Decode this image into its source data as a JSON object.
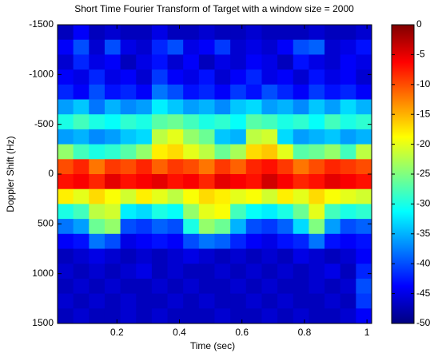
{
  "chart_data": {
    "type": "heatmap",
    "title": "Short Time Fourier Transform of Target with a window size = 2000",
    "x_label": "Time (sec)",
    "y_label": "Doppler Shift (Hz)",
    "xlim": [
      0.01,
      1.015
    ],
    "xticks": [
      0.2,
      0.4,
      0.6,
      0.8,
      1
    ],
    "ylim": [
      -1500,
      1500
    ],
    "y_inverted": true,
    "yticks": [
      -1500,
      -1000,
      -500,
      0,
      500,
      1000,
      1500
    ],
    "clim": [
      -50,
      0
    ],
    "cticks": [
      0,
      -5,
      -10,
      -15,
      -20,
      -25,
      -30,
      -35,
      -40,
      -45,
      -50
    ],
    "colormap": "jet",
    "z": [
      [
        -47,
        -44,
        -47,
        -46,
        -47,
        -47,
        -45,
        -47,
        -47,
        -46,
        -47,
        -47,
        -46,
        -47,
        -47,
        -47,
        -46,
        -47,
        -47,
        -46
      ],
      [
        -44,
        -40,
        -46,
        -40,
        -45,
        -46,
        -42,
        -40,
        -45,
        -44,
        -41,
        -46,
        -45,
        -46,
        -44,
        -40,
        -39,
        -46,
        -45,
        -43
      ],
      [
        -46,
        -42,
        -45,
        -44,
        -47,
        -45,
        -43,
        -46,
        -44,
        -47,
        -45,
        -46,
        -44,
        -45,
        -47,
        -43,
        -45,
        -46,
        -44,
        -45
      ],
      [
        -44,
        -45,
        -42,
        -45,
        -44,
        -46,
        -41,
        -44,
        -45,
        -43,
        -46,
        -44,
        -42,
        -45,
        -44,
        -46,
        -43,
        -45,
        -44,
        -46
      ],
      [
        -42,
        -44,
        -40,
        -43,
        -42,
        -44,
        -38,
        -40,
        -43,
        -42,
        -44,
        -41,
        -43,
        -40,
        -42,
        -44,
        -41,
        -43,
        -42,
        -44
      ],
      [
        -36,
        -34,
        -38,
        -35,
        -37,
        -36,
        -32,
        -34,
        -36,
        -35,
        -37,
        -34,
        -33,
        -36,
        -35,
        -37,
        -34,
        -36,
        -33,
        -35
      ],
      [
        -30,
        -28,
        -30,
        -31,
        -29,
        -30,
        -27,
        -26,
        -28,
        -30,
        -29,
        -31,
        -27,
        -28,
        -30,
        -29,
        -31,
        -28,
        -30,
        -29
      ],
      [
        -36,
        -35,
        -37,
        -36,
        -34,
        -33,
        -22,
        -20,
        -24,
        -26,
        -34,
        -35,
        -22,
        -21,
        -33,
        -36,
        -35,
        -34,
        -36,
        -35
      ],
      [
        -24,
        -28,
        -30,
        -29,
        -27,
        -24,
        -18,
        -17,
        -20,
        -22,
        -26,
        -23,
        -17,
        -16,
        -20,
        -27,
        -26,
        -24,
        -28,
        -22
      ],
      [
        -10,
        -8,
        -12,
        -9,
        -10,
        -8,
        -11,
        -9,
        -10,
        -12,
        -9,
        -11,
        -8,
        -7,
        -9,
        -12,
        -10,
        -8,
        -9,
        -10
      ],
      [
        -7,
        -6,
        -8,
        -5,
        -7,
        -6,
        -5,
        -7,
        -6,
        -8,
        -5,
        -6,
        -7,
        -4,
        -6,
        -8,
        -7,
        -5,
        -6,
        -7
      ],
      [
        -18,
        -20,
        -17,
        -19,
        -21,
        -18,
        -20,
        -22,
        -19,
        -17,
        -18,
        -20,
        -19,
        -21,
        -18,
        -20,
        -17,
        -19,
        -20,
        -21
      ],
      [
        -30,
        -28,
        -22,
        -21,
        -32,
        -33,
        -30,
        -31,
        -24,
        -20,
        -19,
        -28,
        -31,
        -32,
        -30,
        -26,
        -20,
        -28,
        -30,
        -29
      ],
      [
        -38,
        -36,
        -26,
        -24,
        -40,
        -41,
        -39,
        -40,
        -30,
        -24,
        -26,
        -35,
        -40,
        -41,
        -39,
        -33,
        -25,
        -36,
        -40,
        -39
      ],
      [
        -44,
        -43,
        -38,
        -40,
        -45,
        -44,
        -43,
        -44,
        -40,
        -38,
        -39,
        -42,
        -44,
        -45,
        -43,
        -42,
        -38,
        -43,
        -44,
        -43
      ],
      [
        -47,
        -46,
        -45,
        -46,
        -47,
        -46,
        -47,
        -46,
        -45,
        -46,
        -47,
        -46,
        -47,
        -46,
        -47,
        -45,
        -46,
        -47,
        -46,
        -44
      ],
      [
        -46,
        -47,
        -46,
        -47,
        -46,
        -45,
        -47,
        -46,
        -47,
        -47,
        -46,
        -47,
        -46,
        -47,
        -46,
        -47,
        -46,
        -45,
        -47,
        -42
      ],
      [
        -47,
        -46,
        -47,
        -46,
        -47,
        -47,
        -46,
        -47,
        -46,
        -47,
        -47,
        -46,
        -47,
        -46,
        -47,
        -47,
        -46,
        -47,
        -46,
        -40
      ],
      [
        -46,
        -47,
        -46,
        -47,
        -46,
        -47,
        -47,
        -46,
        -47,
        -46,
        -47,
        -47,
        -46,
        -47,
        -46,
        -47,
        -47,
        -46,
        -47,
        -41
      ],
      [
        -47,
        -46,
        -47,
        -47,
        -46,
        -47,
        -46,
        -47,
        -47,
        -47,
        -46,
        -47,
        -47,
        -46,
        -47,
        -46,
        -47,
        -47,
        -46,
        -44
      ]
    ]
  }
}
